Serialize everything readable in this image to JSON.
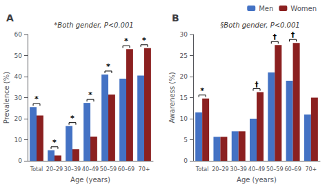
{
  "chart_data": [
    {
      "type": "bar",
      "title": "A",
      "subtitle": "*Both gender, P<0.001",
      "categories": [
        "Total",
        "20–29",
        "30–39",
        "40–49",
        "50–59",
        "60–69",
        "70+"
      ],
      "series": [
        {
          "name": "Men",
          "color": "#4472C4",
          "values": [
            25.5,
            5.0,
            16.5,
            27.5,
            41.0,
            39.0,
            40.5
          ]
        },
        {
          "name": "Women",
          "color": "#8B2020",
          "values": [
            21.5,
            2.5,
            5.5,
            11.5,
            31.5,
            53.0,
            53.5
          ]
        }
      ],
      "xlabel": "Age (years)",
      "ylabel": "Prevalence (%)",
      "ylim": [
        0,
        60
      ],
      "yticks": [
        0,
        10,
        20,
        30,
        40,
        50,
        60
      ],
      "grid": false,
      "annotations": [
        {
          "category": "Total",
          "text": "*"
        },
        {
          "category": "20–29",
          "text": "*"
        },
        {
          "category": "30–39",
          "text": "*"
        },
        {
          "category": "40–49",
          "text": "*"
        },
        {
          "category": "50–59",
          "text": "*"
        },
        {
          "category": "60–69",
          "text": "*"
        },
        {
          "category": "70+",
          "text": "*"
        }
      ]
    },
    {
      "type": "bar",
      "title": "B",
      "subtitle": "§Both gender, P<0.001",
      "categories": [
        "Total",
        "20–29",
        "30–39",
        "40–49",
        "50–59",
        "60–69",
        "70+"
      ],
      "series": [
        {
          "name": "Men",
          "color": "#4472C4",
          "values": [
            11.5,
            5.7,
            7.0,
            10.0,
            21.0,
            19.0,
            11.0
          ]
        },
        {
          "name": "Women",
          "color": "#8B2020",
          "values": [
            14.8,
            5.7,
            7.0,
            16.3,
            27.5,
            28.0,
            15.0
          ]
        }
      ],
      "xlabel": "Age (years)",
      "ylabel": "Awareness (%)",
      "ylim": [
        0,
        30
      ],
      "yticks": [
        0,
        5,
        10,
        15,
        20,
        25,
        30
      ],
      "grid": false,
      "legend": "upper right",
      "annotations": [
        {
          "category": "Total",
          "text": "*"
        },
        {
          "category": "40–49",
          "text": "†"
        },
        {
          "category": "50–59",
          "text": "†"
        },
        {
          "category": "60–69",
          "text": "†"
        }
      ]
    }
  ]
}
